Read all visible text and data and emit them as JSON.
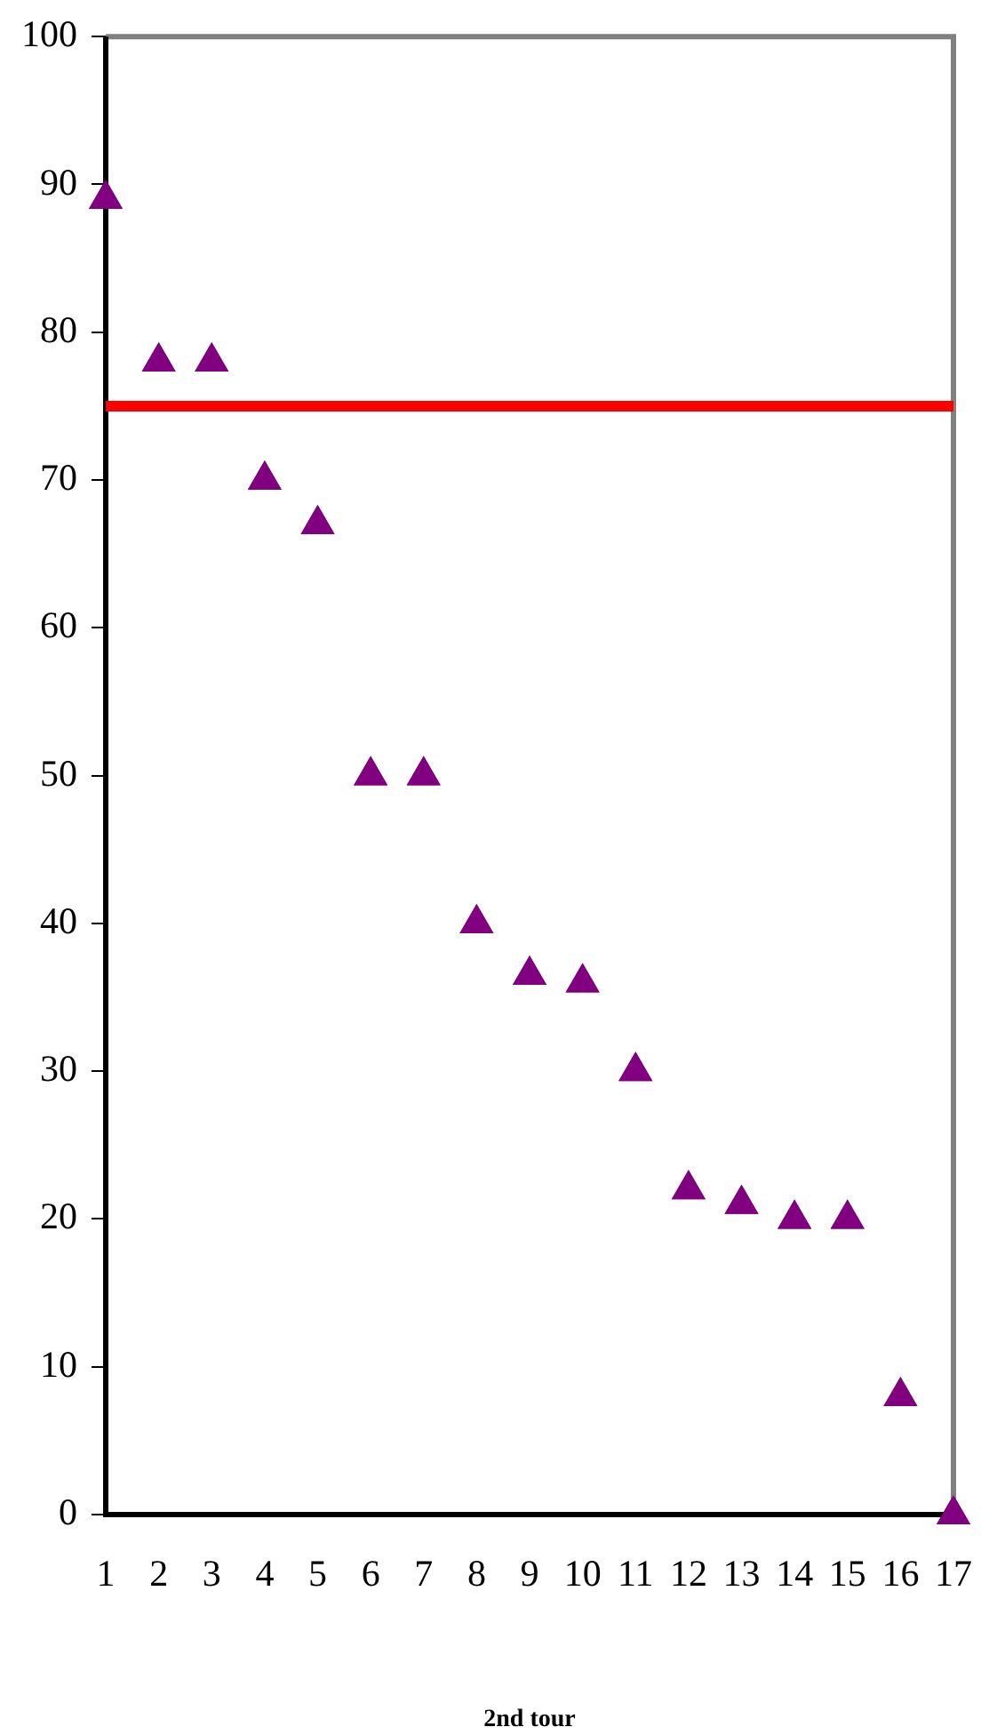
{
  "chart_data": {
    "type": "scatter",
    "xlabel": "2nd tour",
    "x": [
      1,
      2,
      3,
      4,
      5,
      6,
      7,
      8,
      9,
      10,
      11,
      12,
      13,
      14,
      15,
      16,
      17
    ],
    "series": [
      {
        "color": "#800080",
        "values": [
          89,
          78,
          78,
          70,
          67,
          50,
          50,
          40,
          36.5,
          36,
          30,
          22,
          21,
          20,
          20,
          8,
          0
        ]
      }
    ],
    "xlim": [
      1,
      17
    ],
    "xticks": [
      1,
      2,
      3,
      4,
      5,
      6,
      7,
      8,
      9,
      10,
      11,
      12,
      13,
      14,
      15,
      16,
      17
    ],
    "ylim": [
      0,
      100
    ],
    "yticks": [
      0,
      10,
      20,
      30,
      40,
      50,
      60,
      70,
      80,
      90,
      100
    ],
    "ref_lines": [
      {
        "axis": "y",
        "value": 75,
        "color": "#ff0000"
      }
    ],
    "grid": false,
    "legend": false,
    "marker": "triangle"
  }
}
